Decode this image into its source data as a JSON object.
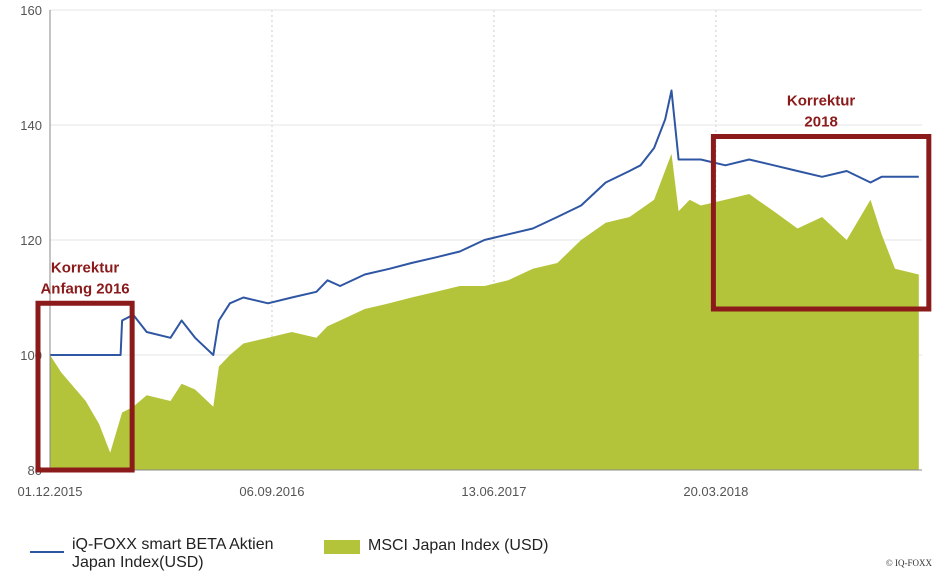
{
  "chart_data": {
    "type": "line",
    "title": "",
    "xlabel": "",
    "ylabel": "",
    "ylim": [
      80,
      160
    ],
    "yticks": [
      80,
      100,
      120,
      140,
      160
    ],
    "xticks": [
      "01.12.2015",
      "06.09.2016",
      "13.06.2017",
      "20.03.2018"
    ],
    "grid": "vertical dashed",
    "series": [
      {
        "name": "iQ-FOXX smart BETA Aktien Japan Index(USD)",
        "kind": "line",
        "color": "#2f56a3",
        "x": [
          "01.12.2015",
          "15.01.2016",
          "20.02.2016",
          "28.02.2016",
          "01.03.2016",
          "15.03.2016",
          "01.04.2016",
          "01.05.2016",
          "15.05.2016",
          "01.06.2016",
          "24.06.2016",
          "01.07.2016",
          "15.07.2016",
          "01.08.2016",
          "01.09.2016",
          "01.10.2016",
          "01.11.2016",
          "15.11.2016",
          "01.12.2016",
          "01.01.2017",
          "01.02.2017",
          "01.03.2017",
          "01.04.2017",
          "01.05.2017",
          "01.06.2017",
          "01.07.2017",
          "01.08.2017",
          "01.09.2017",
          "01.10.2017",
          "01.11.2017",
          "01.12.2017",
          "15.12.2017",
          "01.01.2018",
          "15.01.2018",
          "23.01.2018",
          "01.02.2018",
          "15.02.2018",
          "01.03.2018",
          "01.04.2018",
          "01.05.2018",
          "01.06.2018",
          "01.07.2018",
          "01.08.2018",
          "01.09.2018",
          "01.10.2018",
          "15.10.2018",
          "01.11.2018",
          "01.12.2018"
        ],
        "values": [
          100,
          100,
          100,
          100,
          106,
          107,
          104,
          103,
          106,
          103,
          100,
          106,
          109,
          110,
          109,
          110,
          111,
          113,
          112,
          114,
          115,
          116,
          117,
          118,
          120,
          121,
          122,
          124,
          126,
          130,
          132,
          133,
          136,
          141,
          146,
          134,
          134,
          134,
          133,
          134,
          133,
          132,
          131,
          132,
          130,
          131,
          131,
          131
        ]
      },
      {
        "name": "MSCI Japan Index (USD)",
        "kind": "area",
        "color": "#b4c43a",
        "x": [
          "01.12.2015",
          "15.12.2015",
          "15.01.2016",
          "01.02.2016",
          "15.02.2016",
          "01.03.2016",
          "15.03.2016",
          "01.04.2016",
          "01.05.2016",
          "15.05.2016",
          "01.06.2016",
          "24.06.2016",
          "01.07.2016",
          "15.07.2016",
          "01.08.2016",
          "01.09.2016",
          "01.10.2016",
          "01.11.2016",
          "15.11.2016",
          "01.12.2016",
          "01.01.2017",
          "01.02.2017",
          "01.03.2017",
          "01.04.2017",
          "01.05.2017",
          "01.06.2017",
          "01.07.2017",
          "01.08.2017",
          "01.09.2017",
          "01.10.2017",
          "01.11.2017",
          "01.12.2017",
          "01.01.2018",
          "23.01.2018",
          "01.02.2018",
          "15.02.2018",
          "01.03.2018",
          "01.04.2018",
          "01.05.2018",
          "01.06.2018",
          "01.07.2018",
          "01.08.2018",
          "01.09.2018",
          "01.10.2018",
          "15.10.2018",
          "01.11.2018",
          "01.12.2018"
        ],
        "values": [
          100,
          97,
          92,
          88,
          83,
          90,
          91,
          93,
          92,
          95,
          94,
          91,
          98,
          100,
          102,
          103,
          104,
          103,
          105,
          106,
          108,
          109,
          110,
          111,
          112,
          112,
          113,
          115,
          116,
          120,
          123,
          124,
          127,
          135,
          125,
          127,
          126,
          127,
          128,
          125,
          122,
          124,
          120,
          127,
          121,
          115,
          114
        ]
      }
    ],
    "annotations": [
      {
        "label_lines": [
          "Korrektur",
          "Anfang 2016"
        ],
        "x_from": "01.12.2015",
        "x_to": "01.03.2016",
        "y_from": 80,
        "y_to": 109,
        "color": "#8b1a1a"
      },
      {
        "label_lines": [
          "Korrektur",
          "2018"
        ],
        "x_from": "01.04.2018",
        "x_to": "01.12.2018",
        "y_from": 108,
        "y_to": 138,
        "color": "#8b1a1a"
      }
    ]
  },
  "legend": {
    "line_series_label_1": "iQ-FOXX smart BETA Aktien",
    "line_series_label_2": "Japan Index(USD)",
    "area_series_label": "MSCI Japan Index (USD)"
  },
  "copyright": "© IQ-FOXX"
}
